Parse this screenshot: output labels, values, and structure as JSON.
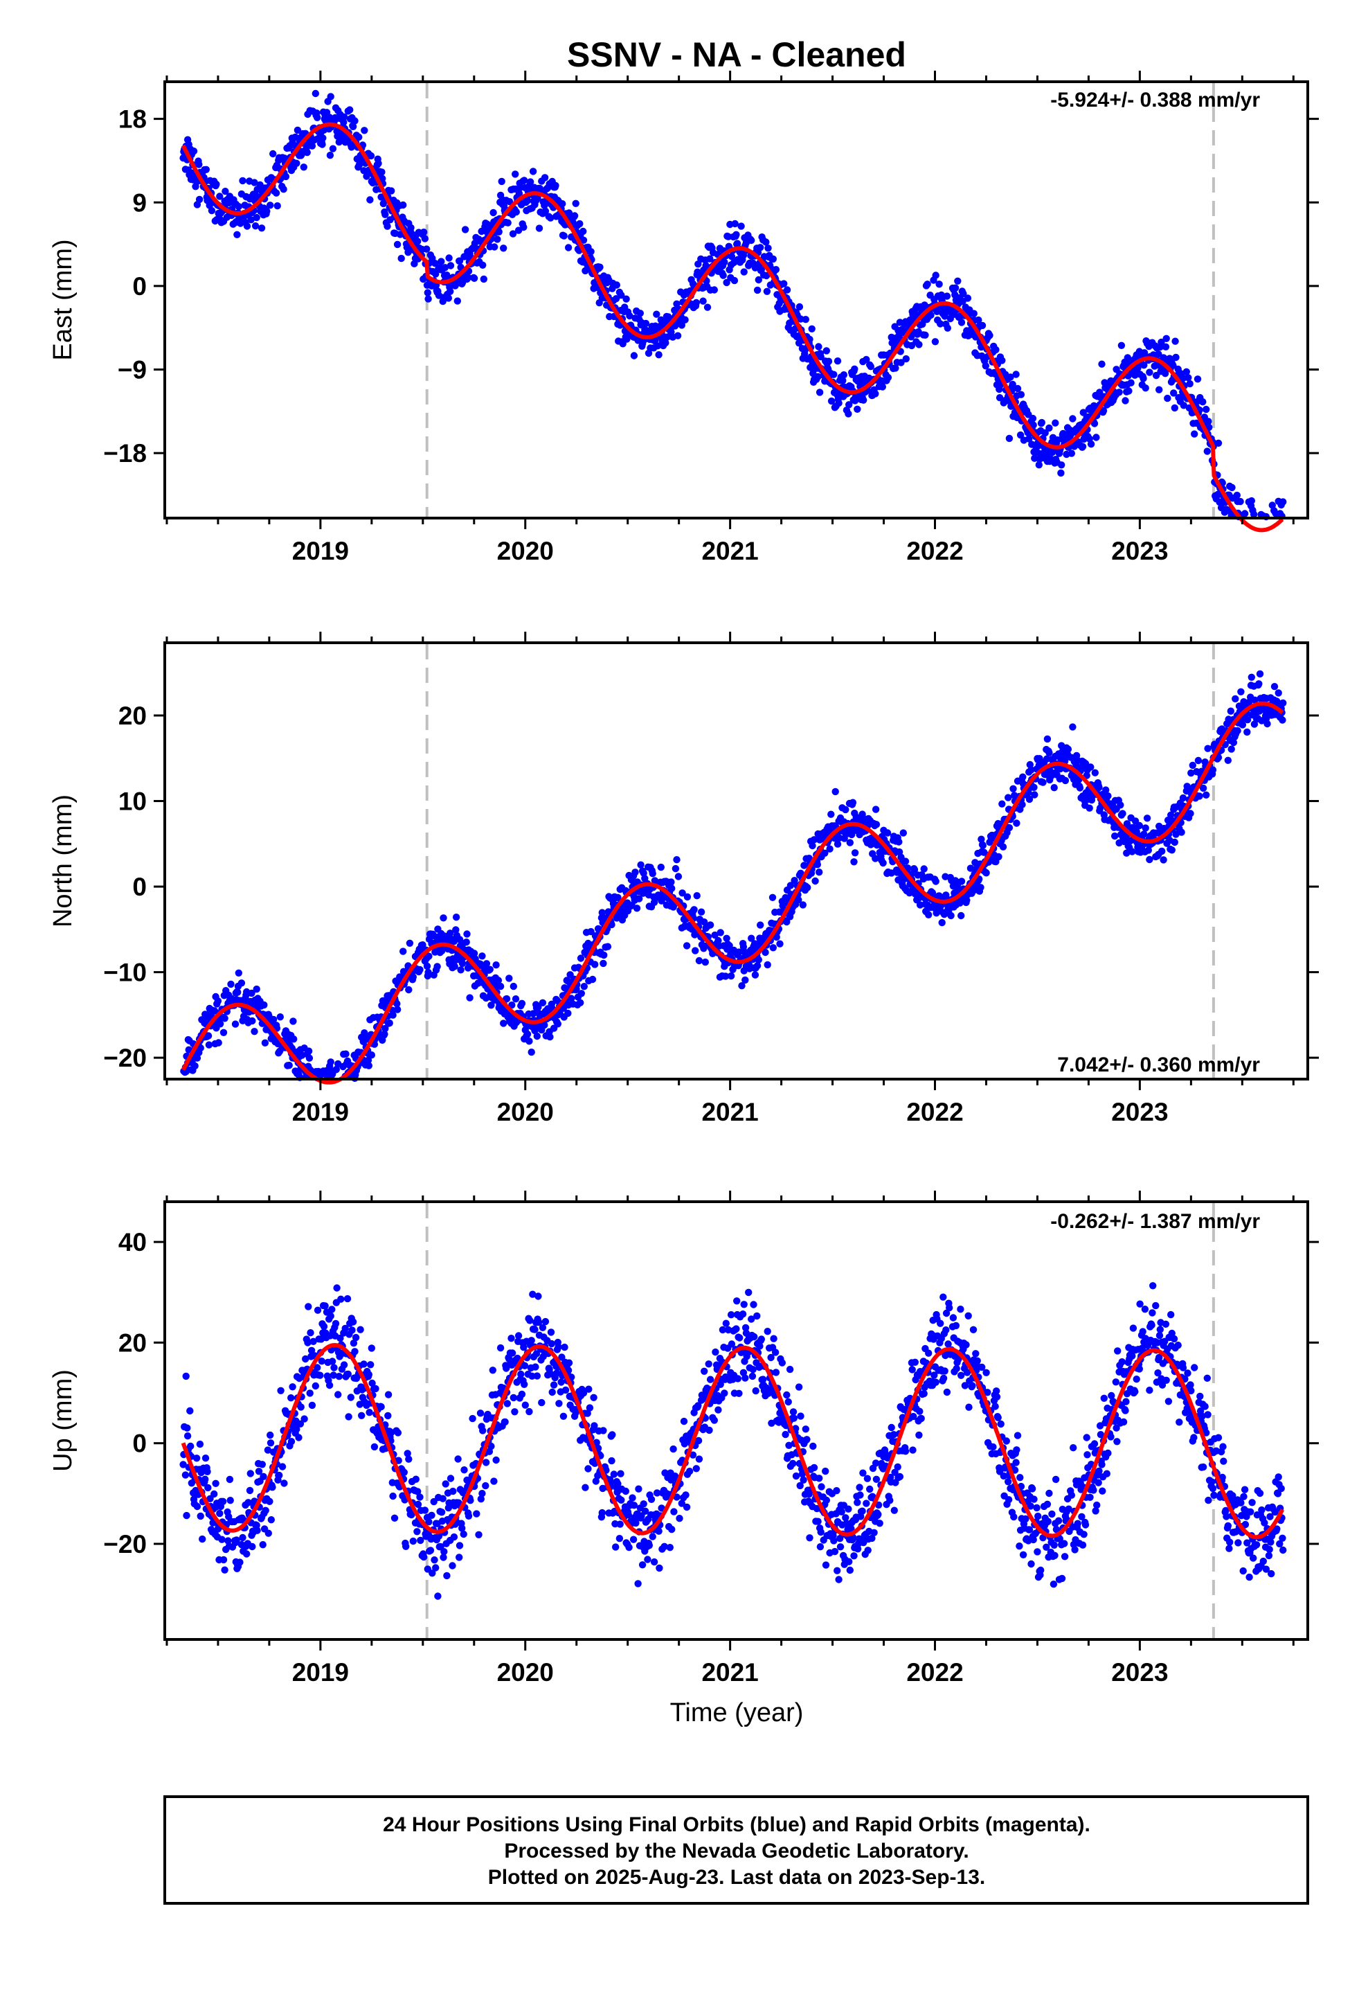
{
  "title": "SSNV  - NA - Cleaned",
  "colors": {
    "data_points": "#0000ff",
    "fit_line": "#ff0000",
    "event_lines": "#c0c0c0",
    "frame": "#000000"
  },
  "chart_data": [
    {
      "type": "scatter",
      "component": "East",
      "ylabel": "East (mm)",
      "xlabel": "",
      "rate_label": "-5.924+/- 0.388 mm/yr",
      "rate_position": "top-right",
      "xlim": [
        2018.24,
        2023.82
      ],
      "ylim": [
        -25.0,
        22.0
      ],
      "xticks": [
        2019,
        2020,
        2021,
        2022,
        2023
      ],
      "xtick_labels": [
        "2019",
        "2020",
        "2021",
        "2022",
        "2023"
      ],
      "yticks": [
        18,
        9,
        0,
        -9,
        -18
      ],
      "ytick_labels": [
        "18",
        "9",
        "0",
        "−9",
        "−18"
      ],
      "event_lines_x": [
        2019.52,
        2023.36
      ],
      "data_range": [
        2018.33,
        2023.7
      ],
      "fit": {
        "rate_mm_yr": -5.924,
        "annual": {
          "amp": 6.2,
          "phase_year": 2019.07
        },
        "offset_at_2021": -0.3,
        "offsets": [
          {
            "epoch": 2019.52,
            "step": -1.5
          },
          {
            "epoch": 2023.36,
            "step": -3.0
          }
        ]
      },
      "scatter_std": 1.3,
      "grid": false
    },
    {
      "type": "scatter",
      "component": "North",
      "ylabel": "North (mm)",
      "xlabel": "",
      "rate_label": "7.042+/- 0.360 mm/yr",
      "rate_position": "bottom-right",
      "xlim": [
        2018.24,
        2023.82
      ],
      "ylim": [
        -22.5,
        28.5
      ],
      "xticks": [
        2019,
        2020,
        2021,
        2022,
        2023
      ],
      "xtick_labels": [
        "2019",
        "2020",
        "2021",
        "2022",
        "2023"
      ],
      "yticks": [
        20,
        10,
        0,
        -10,
        -20
      ],
      "ytick_labels": [
        "20",
        "10",
        "0",
        "−10",
        "−20"
      ],
      "event_lines_x": [
        2019.52,
        2023.36
      ],
      "data_range": [
        2018.33,
        2023.7
      ],
      "fit": {
        "rate_mm_yr": 7.042,
        "annual": {
          "amp": 6.2,
          "phase_year": 2019.57
        },
        "offset_at_2021": -3.0,
        "offsets": []
      },
      "scatter_std": 1.3,
      "grid": false
    },
    {
      "type": "scatter",
      "component": "Up",
      "ylabel": "Up (mm)",
      "xlabel": "Time (year)",
      "rate_label": "-0.262+/- 1.387 mm/yr",
      "rate_position": "top-right",
      "xlim": [
        2018.24,
        2023.82
      ],
      "ylim": [
        -39.0,
        48.0
      ],
      "xticks": [
        2019,
        2020,
        2021,
        2022,
        2023
      ],
      "xtick_labels": [
        "2019",
        "2020",
        "2021",
        "2022",
        "2023"
      ],
      "yticks": [
        40,
        20,
        0,
        -20
      ],
      "ytick_labels": [
        "40",
        "20",
        "0",
        "−20"
      ],
      "event_lines_x": [
        2019.52,
        2023.36
      ],
      "data_range": [
        2018.33,
        2023.7
      ],
      "fit": {
        "rate_mm_yr": -0.262,
        "annual": {
          "amp": 18.5,
          "phase_year": 2019.07
        },
        "offset_at_2021": 0.5,
        "offsets": []
      },
      "scatter_std": 4.5,
      "grid": false
    }
  ],
  "footer": {
    "line1": "24 Hour Positions Using Final Orbits (blue) and Rapid Orbits (magenta).",
    "line2": "Processed by the Nevada Geodetic Laboratory.",
    "line3": "Plotted on 2025-Aug-23. Last data on 2023-Sep-13."
  }
}
